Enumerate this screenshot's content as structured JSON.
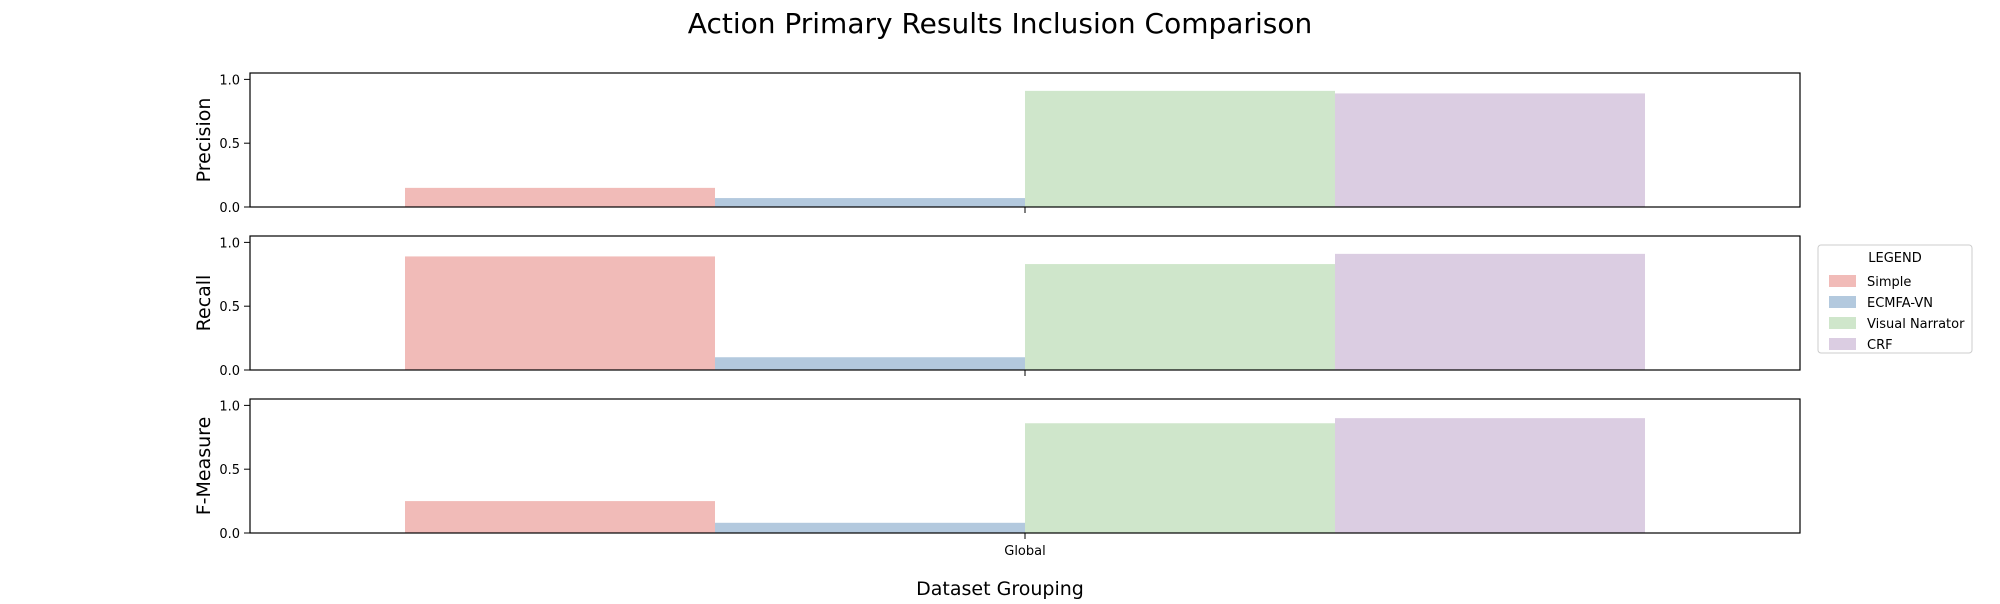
{
  "chart_data": {
    "type": "bar",
    "title": "Action Primary Results Inclusion Comparison",
    "xlabel": "Dataset Grouping",
    "categories": [
      "Global"
    ],
    "ylim": [
      0,
      1.05
    ],
    "yticks": [
      "0.0",
      "0.5",
      "1.0"
    ],
    "series_names": [
      "Simple",
      "ECMFA-VN",
      "Visual Narrator",
      "CRF"
    ],
    "colors": [
      "#f1bbb8",
      "#b3c9de",
      "#cfe6cb",
      "#dbcde2"
    ],
    "panels": [
      {
        "ylabel": "Precision",
        "values": [
          0.15,
          0.07,
          0.91,
          0.89
        ]
      },
      {
        "ylabel": "Recall",
        "values": [
          0.89,
          0.1,
          0.83,
          0.91
        ]
      },
      {
        "ylabel": "F-Measure",
        "values": [
          0.25,
          0.08,
          0.86,
          0.9
        ]
      }
    ],
    "legend": {
      "title": "LEGEND",
      "placement": "right"
    },
    "grid": false
  }
}
